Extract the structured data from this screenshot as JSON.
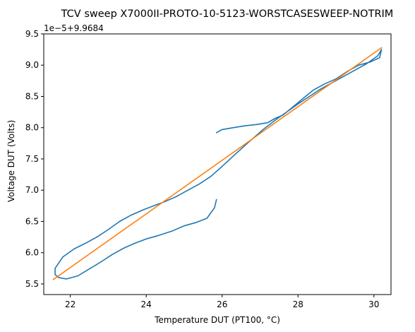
{
  "chart_data": {
    "type": "line",
    "title": "TCV sweep X7000II-PROTO-10-5123-WORSTCASESWEEP-NOTRIM",
    "xlabel": "Temperature DUT (PT100, °C)",
    "ylabel": "Voltage DUT (Volts)",
    "offset_text": "1e−5+9.9684",
    "xlim": [
      21.3,
      30.45
    ],
    "ylim": [
      5.33,
      9.5
    ],
    "x_ticks": [
      22,
      24,
      26,
      28,
      30
    ],
    "y_ticks": [
      5.5,
      6.0,
      6.5,
      7.0,
      7.5,
      8.0,
      8.5,
      9.0,
      9.5
    ],
    "x_tick_labels": [
      "22",
      "24",
      "26",
      "28",
      "30"
    ],
    "y_tick_labels": [
      "5.5",
      "6.0",
      "6.5",
      "7.0",
      "7.5",
      "8.0",
      "8.5",
      "9.0",
      "9.5"
    ],
    "grid": false,
    "legend": "none",
    "series": [
      {
        "color": "#1f77b4",
        "points": [
          [
            25.85,
            6.85
          ],
          [
            25.8,
            6.72
          ],
          [
            25.6,
            6.55
          ],
          [
            25.3,
            6.48
          ],
          [
            25.0,
            6.43
          ],
          [
            24.7,
            6.35
          ],
          [
            24.3,
            6.27
          ],
          [
            24.0,
            6.22
          ],
          [
            23.7,
            6.15
          ],
          [
            23.4,
            6.07
          ],
          [
            23.1,
            5.97
          ],
          [
            22.8,
            5.85
          ],
          [
            22.5,
            5.74
          ],
          [
            22.2,
            5.63
          ],
          [
            21.9,
            5.58
          ],
          [
            21.7,
            5.6
          ],
          [
            21.6,
            5.65
          ],
          [
            21.6,
            5.75
          ],
          [
            21.8,
            5.93
          ],
          [
            22.1,
            6.06
          ],
          [
            22.4,
            6.15
          ],
          [
            22.7,
            6.25
          ],
          [
            23.0,
            6.37
          ],
          [
            23.3,
            6.5
          ],
          [
            23.6,
            6.6
          ],
          [
            23.9,
            6.68
          ],
          [
            24.2,
            6.75
          ],
          [
            24.5,
            6.82
          ],
          [
            24.8,
            6.9
          ],
          [
            25.1,
            7.0
          ],
          [
            25.4,
            7.1
          ],
          [
            25.7,
            7.22
          ],
          [
            26.0,
            7.38
          ],
          [
            26.3,
            7.55
          ],
          [
            26.7,
            7.77
          ],
          [
            27.1,
            7.98
          ],
          [
            27.4,
            8.12
          ],
          [
            27.7,
            8.25
          ],
          [
            28.0,
            8.38
          ],
          [
            28.3,
            8.5
          ],
          [
            28.6,
            8.62
          ],
          [
            28.9,
            8.72
          ],
          [
            29.2,
            8.82
          ],
          [
            29.5,
            8.92
          ],
          [
            29.8,
            9.02
          ],
          [
            30.1,
            9.15
          ],
          [
            30.2,
            9.25
          ],
          [
            30.15,
            9.12
          ],
          [
            29.9,
            9.05
          ],
          [
            29.6,
            9.0
          ],
          [
            29.3,
            8.9
          ],
          [
            29.0,
            8.78
          ],
          [
            28.7,
            8.7
          ],
          [
            28.4,
            8.6
          ],
          [
            28.1,
            8.45
          ],
          [
            27.8,
            8.3
          ],
          [
            27.6,
            8.2
          ],
          [
            27.4,
            8.15
          ],
          [
            27.2,
            8.08
          ],
          [
            26.9,
            8.05
          ],
          [
            26.6,
            8.03
          ],
          [
            26.3,
            8.0
          ],
          [
            26.0,
            7.97
          ],
          [
            25.85,
            7.92
          ]
        ]
      },
      {
        "color": "#ff7f0e",
        "points": [
          [
            21.55,
            5.57
          ],
          [
            30.2,
            9.28
          ]
        ]
      }
    ]
  }
}
